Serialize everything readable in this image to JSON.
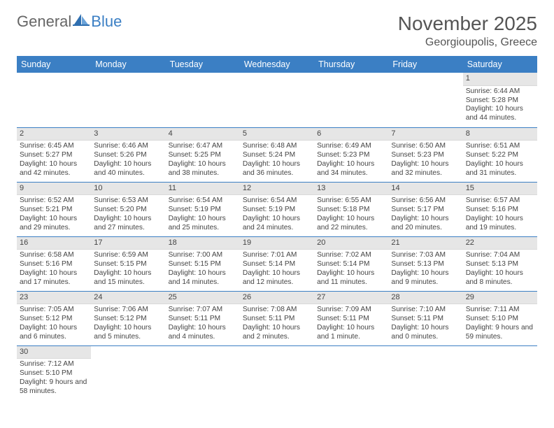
{
  "logo": {
    "general": "General",
    "blue": "Blue"
  },
  "title": "November 2025",
  "location": "Georgioupolis, Greece",
  "colors": {
    "header_bg": "#3b7fc4",
    "header_fg": "#ffffff",
    "daynum_bg": "#e6e6e6",
    "row_divider": "#3b7fc4",
    "text": "#444444",
    "title_text": "#555555"
  },
  "day_headers": [
    "Sunday",
    "Monday",
    "Tuesday",
    "Wednesday",
    "Thursday",
    "Friday",
    "Saturday"
  ],
  "weeks": [
    [
      {
        "n": "",
        "sr": "",
        "ss": "",
        "dl": ""
      },
      {
        "n": "",
        "sr": "",
        "ss": "",
        "dl": ""
      },
      {
        "n": "",
        "sr": "",
        "ss": "",
        "dl": ""
      },
      {
        "n": "",
        "sr": "",
        "ss": "",
        "dl": ""
      },
      {
        "n": "",
        "sr": "",
        "ss": "",
        "dl": ""
      },
      {
        "n": "",
        "sr": "",
        "ss": "",
        "dl": ""
      },
      {
        "n": "1",
        "sr": "Sunrise: 6:44 AM",
        "ss": "Sunset: 5:28 PM",
        "dl": "Daylight: 10 hours and 44 minutes."
      }
    ],
    [
      {
        "n": "2",
        "sr": "Sunrise: 6:45 AM",
        "ss": "Sunset: 5:27 PM",
        "dl": "Daylight: 10 hours and 42 minutes."
      },
      {
        "n": "3",
        "sr": "Sunrise: 6:46 AM",
        "ss": "Sunset: 5:26 PM",
        "dl": "Daylight: 10 hours and 40 minutes."
      },
      {
        "n": "4",
        "sr": "Sunrise: 6:47 AM",
        "ss": "Sunset: 5:25 PM",
        "dl": "Daylight: 10 hours and 38 minutes."
      },
      {
        "n": "5",
        "sr": "Sunrise: 6:48 AM",
        "ss": "Sunset: 5:24 PM",
        "dl": "Daylight: 10 hours and 36 minutes."
      },
      {
        "n": "6",
        "sr": "Sunrise: 6:49 AM",
        "ss": "Sunset: 5:23 PM",
        "dl": "Daylight: 10 hours and 34 minutes."
      },
      {
        "n": "7",
        "sr": "Sunrise: 6:50 AM",
        "ss": "Sunset: 5:23 PM",
        "dl": "Daylight: 10 hours and 32 minutes."
      },
      {
        "n": "8",
        "sr": "Sunrise: 6:51 AM",
        "ss": "Sunset: 5:22 PM",
        "dl": "Daylight: 10 hours and 31 minutes."
      }
    ],
    [
      {
        "n": "9",
        "sr": "Sunrise: 6:52 AM",
        "ss": "Sunset: 5:21 PM",
        "dl": "Daylight: 10 hours and 29 minutes."
      },
      {
        "n": "10",
        "sr": "Sunrise: 6:53 AM",
        "ss": "Sunset: 5:20 PM",
        "dl": "Daylight: 10 hours and 27 minutes."
      },
      {
        "n": "11",
        "sr": "Sunrise: 6:54 AM",
        "ss": "Sunset: 5:19 PM",
        "dl": "Daylight: 10 hours and 25 minutes."
      },
      {
        "n": "12",
        "sr": "Sunrise: 6:54 AM",
        "ss": "Sunset: 5:19 PM",
        "dl": "Daylight: 10 hours and 24 minutes."
      },
      {
        "n": "13",
        "sr": "Sunrise: 6:55 AM",
        "ss": "Sunset: 5:18 PM",
        "dl": "Daylight: 10 hours and 22 minutes."
      },
      {
        "n": "14",
        "sr": "Sunrise: 6:56 AM",
        "ss": "Sunset: 5:17 PM",
        "dl": "Daylight: 10 hours and 20 minutes."
      },
      {
        "n": "15",
        "sr": "Sunrise: 6:57 AM",
        "ss": "Sunset: 5:16 PM",
        "dl": "Daylight: 10 hours and 19 minutes."
      }
    ],
    [
      {
        "n": "16",
        "sr": "Sunrise: 6:58 AM",
        "ss": "Sunset: 5:16 PM",
        "dl": "Daylight: 10 hours and 17 minutes."
      },
      {
        "n": "17",
        "sr": "Sunrise: 6:59 AM",
        "ss": "Sunset: 5:15 PM",
        "dl": "Daylight: 10 hours and 15 minutes."
      },
      {
        "n": "18",
        "sr": "Sunrise: 7:00 AM",
        "ss": "Sunset: 5:15 PM",
        "dl": "Daylight: 10 hours and 14 minutes."
      },
      {
        "n": "19",
        "sr": "Sunrise: 7:01 AM",
        "ss": "Sunset: 5:14 PM",
        "dl": "Daylight: 10 hours and 12 minutes."
      },
      {
        "n": "20",
        "sr": "Sunrise: 7:02 AM",
        "ss": "Sunset: 5:14 PM",
        "dl": "Daylight: 10 hours and 11 minutes."
      },
      {
        "n": "21",
        "sr": "Sunrise: 7:03 AM",
        "ss": "Sunset: 5:13 PM",
        "dl": "Daylight: 10 hours and 9 minutes."
      },
      {
        "n": "22",
        "sr": "Sunrise: 7:04 AM",
        "ss": "Sunset: 5:13 PM",
        "dl": "Daylight: 10 hours and 8 minutes."
      }
    ],
    [
      {
        "n": "23",
        "sr": "Sunrise: 7:05 AM",
        "ss": "Sunset: 5:12 PM",
        "dl": "Daylight: 10 hours and 6 minutes."
      },
      {
        "n": "24",
        "sr": "Sunrise: 7:06 AM",
        "ss": "Sunset: 5:12 PM",
        "dl": "Daylight: 10 hours and 5 minutes."
      },
      {
        "n": "25",
        "sr": "Sunrise: 7:07 AM",
        "ss": "Sunset: 5:11 PM",
        "dl": "Daylight: 10 hours and 4 minutes."
      },
      {
        "n": "26",
        "sr": "Sunrise: 7:08 AM",
        "ss": "Sunset: 5:11 PM",
        "dl": "Daylight: 10 hours and 2 minutes."
      },
      {
        "n": "27",
        "sr": "Sunrise: 7:09 AM",
        "ss": "Sunset: 5:11 PM",
        "dl": "Daylight: 10 hours and 1 minute."
      },
      {
        "n": "28",
        "sr": "Sunrise: 7:10 AM",
        "ss": "Sunset: 5:11 PM",
        "dl": "Daylight: 10 hours and 0 minutes."
      },
      {
        "n": "29",
        "sr": "Sunrise: 7:11 AM",
        "ss": "Sunset: 5:10 PM",
        "dl": "Daylight: 9 hours and 59 minutes."
      }
    ],
    [
      {
        "n": "30",
        "sr": "Sunrise: 7:12 AM",
        "ss": "Sunset: 5:10 PM",
        "dl": "Daylight: 9 hours and 58 minutes."
      },
      {
        "n": "",
        "sr": "",
        "ss": "",
        "dl": ""
      },
      {
        "n": "",
        "sr": "",
        "ss": "",
        "dl": ""
      },
      {
        "n": "",
        "sr": "",
        "ss": "",
        "dl": ""
      },
      {
        "n": "",
        "sr": "",
        "ss": "",
        "dl": ""
      },
      {
        "n": "",
        "sr": "",
        "ss": "",
        "dl": ""
      },
      {
        "n": "",
        "sr": "",
        "ss": "",
        "dl": ""
      }
    ]
  ]
}
